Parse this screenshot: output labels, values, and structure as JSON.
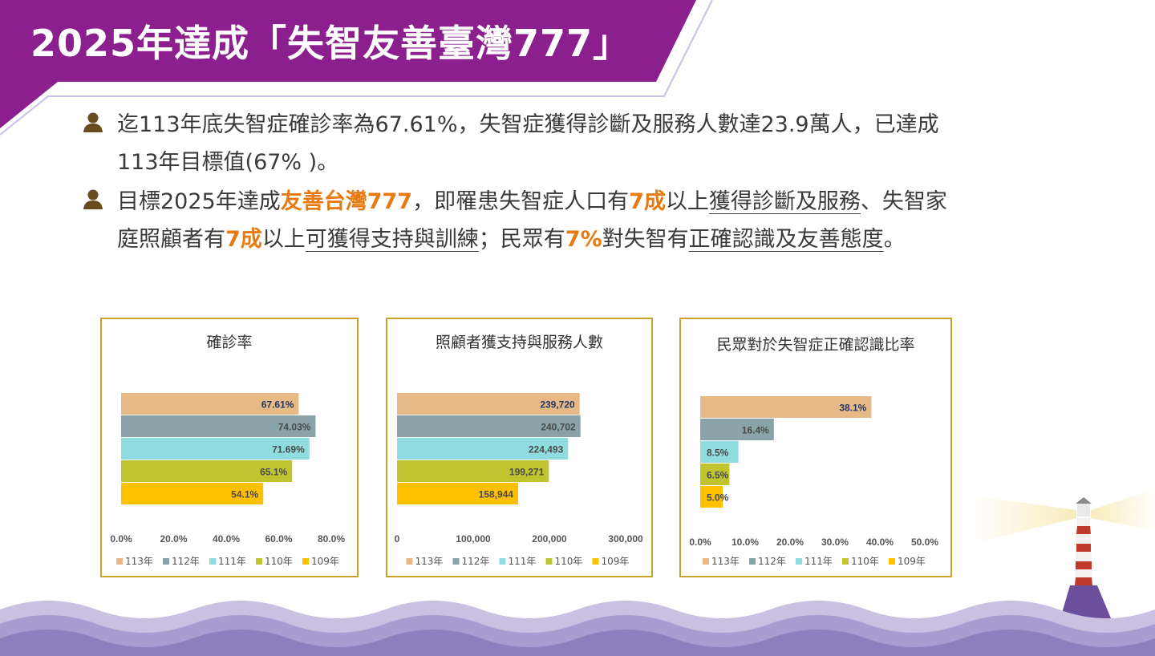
{
  "header": {
    "title": "2025年達成「失智友善臺灣777」"
  },
  "bullets": [
    {
      "icon": "person-icon",
      "parts": [
        {
          "text": "迄113年底失智症確診率為67.61%，失智症獲得診斷及服務人數達23.9萬人，已達成113年目標值(67% )。",
          "style": "plain"
        }
      ]
    },
    {
      "icon": "person-icon",
      "parts": [
        {
          "text": "目標2025年達成",
          "style": "plain"
        },
        {
          "text": "友善台灣777",
          "style": "hl"
        },
        {
          "text": "，即罹患失智症人口有",
          "style": "plain"
        },
        {
          "text": "7成",
          "style": "hl"
        },
        {
          "text": "以上",
          "style": "plain"
        },
        {
          "text": "獲得診斷及服務",
          "style": "ul"
        },
        {
          "text": "、失智家庭照顧者有",
          "style": "plain"
        },
        {
          "text": "7成",
          "style": "hl"
        },
        {
          "text": "以上",
          "style": "plain"
        },
        {
          "text": "可獲得支持與訓練",
          "style": "ul"
        },
        {
          "text": "；民眾有",
          "style": "plain"
        },
        {
          "text": "7%",
          "style": "hl"
        },
        {
          "text": "對失智有",
          "style": "plain"
        },
        {
          "text": "正確認識及友善態度",
          "style": "ul"
        },
        {
          "text": "。",
          "style": "plain"
        }
      ]
    }
  ],
  "colors": {
    "banner": "#8b1f8e",
    "accent": "#e87a12",
    "panel_border": "#c9a227",
    "label_dark": "#1f3864"
  },
  "chart_data": [
    {
      "type": "bar",
      "title": "確診率",
      "categories": [
        "113年",
        "112年",
        "111年",
        "110年",
        "109年"
      ],
      "values": [
        67.61,
        74.03,
        71.69,
        65.1,
        54.1
      ],
      "value_labels": [
        "67.61%",
        "74.03%",
        "71.69%",
        "65.1%",
        "54.1%"
      ],
      "colors": [
        "#e7b986",
        "#8aa3a8",
        "#8fdde0",
        "#bfc42f",
        "#ffc000"
      ],
      "xlim": [
        0,
        80
      ],
      "ticks": [
        "0.0%",
        "20.0%",
        "40.0%",
        "60.0%",
        "80.0%"
      ],
      "legend": "bottom",
      "grid": false
    },
    {
      "type": "bar",
      "title": "照顧者獲支持與服務人數",
      "categories": [
        "113年",
        "112年",
        "111年",
        "110年",
        "109年"
      ],
      "values": [
        239720,
        240702,
        224493,
        199271,
        158944
      ],
      "value_labels": [
        "239,720",
        "240,702",
        "224,493",
        "199,271",
        "158,944"
      ],
      "colors": [
        "#e7b986",
        "#8aa3a8",
        "#8fdde0",
        "#bfc42f",
        "#ffc000"
      ],
      "xlim": [
        0,
        300000
      ],
      "ticks": [
        "0",
        "100,000",
        "200,000",
        "300,000"
      ],
      "legend": "bottom",
      "grid": false
    },
    {
      "type": "bar",
      "title": "民眾對於失智症正確認識比率",
      "categories": [
        "113年",
        "112年",
        "111年",
        "110年",
        "109年"
      ],
      "values": [
        38.1,
        16.4,
        8.5,
        6.5,
        5.0
      ],
      "value_labels": [
        "38.1%",
        "16.4%",
        "8.5%",
        "6.5%",
        "5.0%"
      ],
      "colors": [
        "#e7b986",
        "#8aa3a8",
        "#8fdde0",
        "#bfc42f",
        "#ffc000"
      ],
      "xlim": [
        0,
        50
      ],
      "ticks": [
        "0.0%",
        "10.0%",
        "20.0%",
        "30.0%",
        "40.0%",
        "50.0%"
      ],
      "legend": "bottom",
      "grid": false
    }
  ]
}
